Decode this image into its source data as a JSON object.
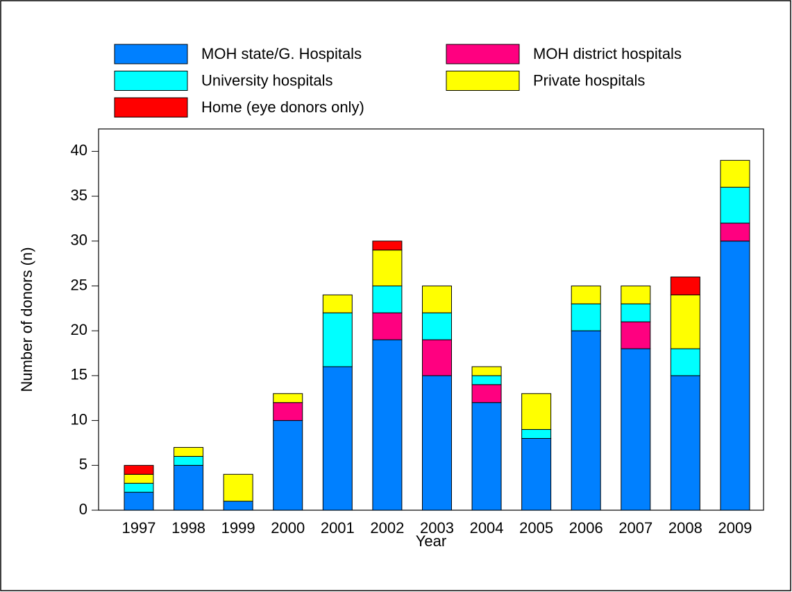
{
  "chart_data": {
    "type": "stacked_bar",
    "x_label": "Year",
    "y_label": "Number of donors (n)",
    "categories": [
      "1997",
      "1998",
      "1999",
      "2000",
      "2001",
      "2002",
      "2003",
      "2004",
      "2005",
      "2006",
      "2007",
      "2008",
      "2009"
    ],
    "series": [
      {
        "name": "MOH state/G. Hospitals",
        "color": "#0080ff",
        "values": [
          2,
          5,
          1,
          10,
          16,
          19,
          15,
          12,
          8,
          20,
          18,
          15,
          30
        ]
      },
      {
        "name": "MOH district hospitals",
        "color": "#ff0080",
        "values": [
          0,
          0,
          0,
          2,
          0,
          3,
          4,
          2,
          0,
          0,
          3,
          0,
          2
        ]
      },
      {
        "name": "University hospitals",
        "color": "#00ffff",
        "values": [
          1,
          1,
          0,
          0,
          6,
          3,
          3,
          1,
          1,
          3,
          2,
          3,
          4
        ]
      },
      {
        "name": "Private hospitals",
        "color": "#ffff00",
        "values": [
          1,
          1,
          3,
          1,
          2,
          4,
          3,
          1,
          4,
          2,
          2,
          6,
          3
        ]
      },
      {
        "name": "Home (eye donors only)",
        "color": "#ff0000",
        "values": [
          1,
          0,
          0,
          0,
          0,
          1,
          0,
          0,
          0,
          0,
          0,
          2,
          0
        ]
      }
    ],
    "ylim": [
      0,
      42.5
    ],
    "yticks": [
      0,
      5,
      10,
      15,
      20,
      25,
      30,
      35,
      40
    ]
  }
}
